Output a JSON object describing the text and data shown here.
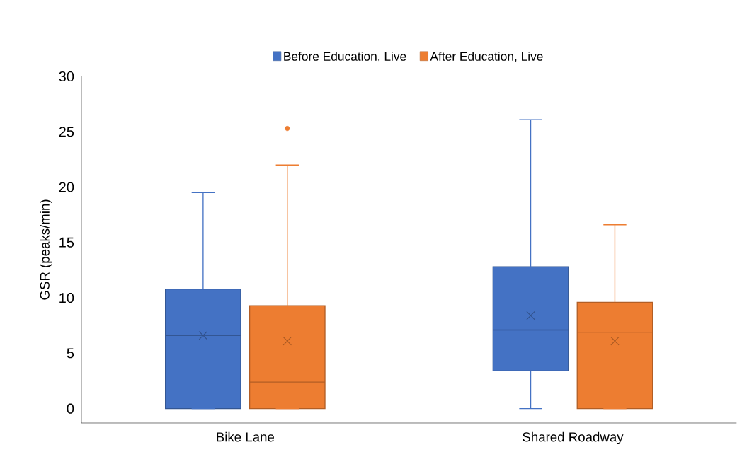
{
  "chart_data": {
    "type": "box",
    "categories": [
      "Bike Lane",
      "Shared Roadway"
    ],
    "ylabel": "GSR (peaks/min)",
    "ylim": [
      -1.3,
      30
    ],
    "yticks": [
      0,
      5,
      10,
      15,
      20,
      25,
      30
    ],
    "legend": "top",
    "grid": false,
    "series": [
      {
        "name": "Before Education, Live",
        "color": "#4472c4",
        "boxes": [
          {
            "low": 0,
            "q1": 0,
            "median": 6.6,
            "q3": 10.8,
            "high": 19.5,
            "mean": 6.6
          },
          {
            "low": 0,
            "q1": 3.4,
            "median": 7.1,
            "q3": 12.8,
            "high": 26.1,
            "mean": 8.4
          }
        ]
      },
      {
        "name": "After Education, Live",
        "color": "#ed7d31",
        "boxes": [
          {
            "low": 0,
            "q1": 0,
            "median": 2.4,
            "q3": 9.3,
            "high": 22.0,
            "mean": 6.1,
            "outliers": [
              25.3
            ]
          },
          {
            "low": 0,
            "q1": 0,
            "median": 6.9,
            "q3": 9.6,
            "high": 16.6,
            "mean": 6.1
          }
        ]
      }
    ]
  }
}
